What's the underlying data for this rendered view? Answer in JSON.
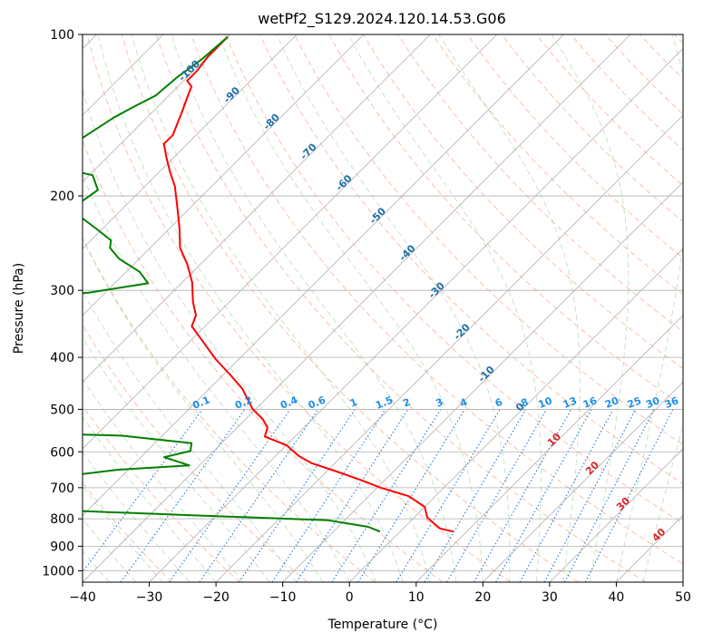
{
  "chart_data": {
    "type": "line",
    "title": "wetPf2_S129.2024.120.14.53.G06",
    "xlabel": "Temperature (°C)",
    "ylabel": "Pressure (hPa)",
    "xlim": [
      -40,
      50
    ],
    "ylim": [
      1050,
      100
    ],
    "y_scale": "log",
    "grid": true,
    "x_ticks": [
      {
        "value": -40,
        "label": "−40"
      },
      {
        "value": -30,
        "label": "−30"
      },
      {
        "value": -20,
        "label": "−20"
      },
      {
        "value": -10,
        "label": "−10"
      },
      {
        "value": 0,
        "label": "0"
      },
      {
        "value": 10,
        "label": "10"
      },
      {
        "value": 20,
        "label": "20"
      },
      {
        "value": 30,
        "label": "30"
      },
      {
        "value": 40,
        "label": "40"
      },
      {
        "value": 50,
        "label": "50"
      }
    ],
    "y_ticks": [
      {
        "value": 100,
        "label": "100"
      },
      {
        "value": 200,
        "label": "200"
      },
      {
        "value": 300,
        "label": "300"
      },
      {
        "value": 400,
        "label": "400"
      },
      {
        "value": 500,
        "label": "500"
      },
      {
        "value": 600,
        "label": "600"
      },
      {
        "value": 700,
        "label": "700"
      },
      {
        "value": 800,
        "label": "800"
      },
      {
        "value": 900,
        "label": "900"
      },
      {
        "value": 1000,
        "label": "1000"
      }
    ],
    "skew": 1.0,
    "dry_adiabats_theta_c": [
      -30,
      -20,
      -10,
      0,
      10,
      20,
      30,
      40,
      50,
      60,
      70,
      80,
      90,
      100,
      110,
      120,
      130,
      140,
      150,
      160,
      170,
      180,
      190,
      200
    ],
    "moist_adiabat_labels": [
      {
        "label": "-100",
        "p": 118
      },
      {
        "label": "-90",
        "p": 131
      },
      {
        "label": "-80",
        "p": 147
      },
      {
        "label": "-70",
        "p": 167
      },
      {
        "label": "-60",
        "p": 191
      },
      {
        "label": "-50",
        "p": 220
      },
      {
        "label": "-40",
        "p": 258
      },
      {
        "label": "-30",
        "p": 303
      },
      {
        "label": "-20",
        "p": 362
      },
      {
        "label": "-10",
        "p": 434
      },
      {
        "label": "0",
        "p": 500
      },
      {
        "label": "10",
        "p": 575
      },
      {
        "label": "20",
        "p": 650
      },
      {
        "label": "30",
        "p": 758
      },
      {
        "label": "40",
        "p": 866
      }
    ],
    "mixing_ratio_labels": [
      "0.1",
      "0.2",
      "0.4",
      "0.6",
      "1",
      "1.5",
      "2",
      "3",
      "4",
      "6",
      "8",
      "10",
      "13",
      "16",
      "20",
      "25",
      "30",
      "36"
    ],
    "mixing_ratio_values": [
      0.1,
      0.2,
      0.4,
      0.6,
      1,
      1.5,
      2,
      3,
      4,
      6,
      8,
      10,
      13,
      16,
      20,
      25,
      30,
      36
    ],
    "series": [
      {
        "color": "#ff0000",
        "points": [
          [
            -100,
            101
          ],
          [
            -100,
            110
          ],
          [
            -99.5,
            117
          ],
          [
            -99.5,
            122
          ],
          [
            -98,
            125
          ],
          [
            -97,
            131
          ],
          [
            -95.5,
            140
          ],
          [
            -94.5,
            147
          ],
          [
            -93.5,
            154
          ],
          [
            -93.5,
            160
          ],
          [
            -91,
            170
          ],
          [
            -88.5,
            180
          ],
          [
            -85.5,
            192
          ],
          [
            -82,
            210
          ],
          [
            -78.5,
            230
          ],
          [
            -75.5,
            250
          ],
          [
            -72,
            268
          ],
          [
            -68.5,
            290
          ],
          [
            -65.5,
            315
          ],
          [
            -63,
            334
          ],
          [
            -62,
            350
          ],
          [
            -58,
            374
          ],
          [
            -53.5,
            403
          ],
          [
            -48.5,
            434
          ],
          [
            -45,
            458
          ],
          [
            -40.5,
            499
          ],
          [
            -37.5,
            521
          ],
          [
            -35.5,
            540
          ],
          [
            -34.5,
            562
          ],
          [
            -30,
            583
          ],
          [
            -26.5,
            611
          ],
          [
            -23.5,
            630
          ],
          [
            -18.5,
            653
          ],
          [
            -13.5,
            678
          ],
          [
            -9.5,
            700
          ],
          [
            -4,
            726
          ],
          [
            0,
            760
          ],
          [
            2,
            796
          ],
          [
            5.5,
            834
          ],
          [
            8,
            845
          ]
        ]
      },
      {
        "color": "#008000",
        "points": [
          [
            -100,
            101
          ],
          [
            -100.5,
            111
          ],
          [
            -101.5,
            120
          ],
          [
            -102,
            130
          ],
          [
            -103.5,
            136
          ],
          [
            -105,
            143
          ],
          [
            -106.5,
            155
          ],
          [
            -108.5,
            170
          ],
          [
            -107,
            176
          ],
          [
            -99.5,
            183
          ],
          [
            -96.5,
            195
          ],
          [
            -97.5,
            209
          ],
          [
            -95,
            219
          ],
          [
            -91,
            230
          ],
          [
            -87,
            242
          ],
          [
            -86,
            250
          ],
          [
            -83,
            262
          ],
          [
            -78,
            277
          ],
          [
            -75,
            291
          ],
          [
            -82.5,
            303
          ],
          [
            -97.5,
            314
          ],
          [
            -105.5,
            327
          ],
          [
            -101.5,
            342
          ],
          [
            -91,
            355
          ],
          [
            -89.5,
            366
          ],
          [
            -98.5,
            378
          ],
          [
            -104,
            395
          ],
          [
            -96,
            419
          ],
          [
            -97,
            438
          ],
          [
            -100,
            462
          ],
          [
            -95,
            481
          ],
          [
            -91,
            503
          ],
          [
            -95,
            521
          ],
          [
            -107.5,
            533
          ],
          [
            -94,
            543
          ],
          [
            -56,
            560
          ],
          [
            -44.5,
            578
          ],
          [
            -43.5,
            598
          ],
          [
            -46.5,
            614
          ],
          [
            -41.5,
            636
          ],
          [
            -51.5,
            648
          ],
          [
            -60.5,
            671
          ],
          [
            -76,
            700
          ],
          [
            -75,
            712
          ],
          [
            -67,
            724
          ],
          [
            -74,
            739
          ],
          [
            -75,
            748
          ],
          [
            -58,
            768
          ],
          [
            -35,
            787
          ],
          [
            -12.5,
            805
          ],
          [
            -5.5,
            828
          ],
          [
            -3,
            845
          ]
        ]
      }
    ]
  }
}
